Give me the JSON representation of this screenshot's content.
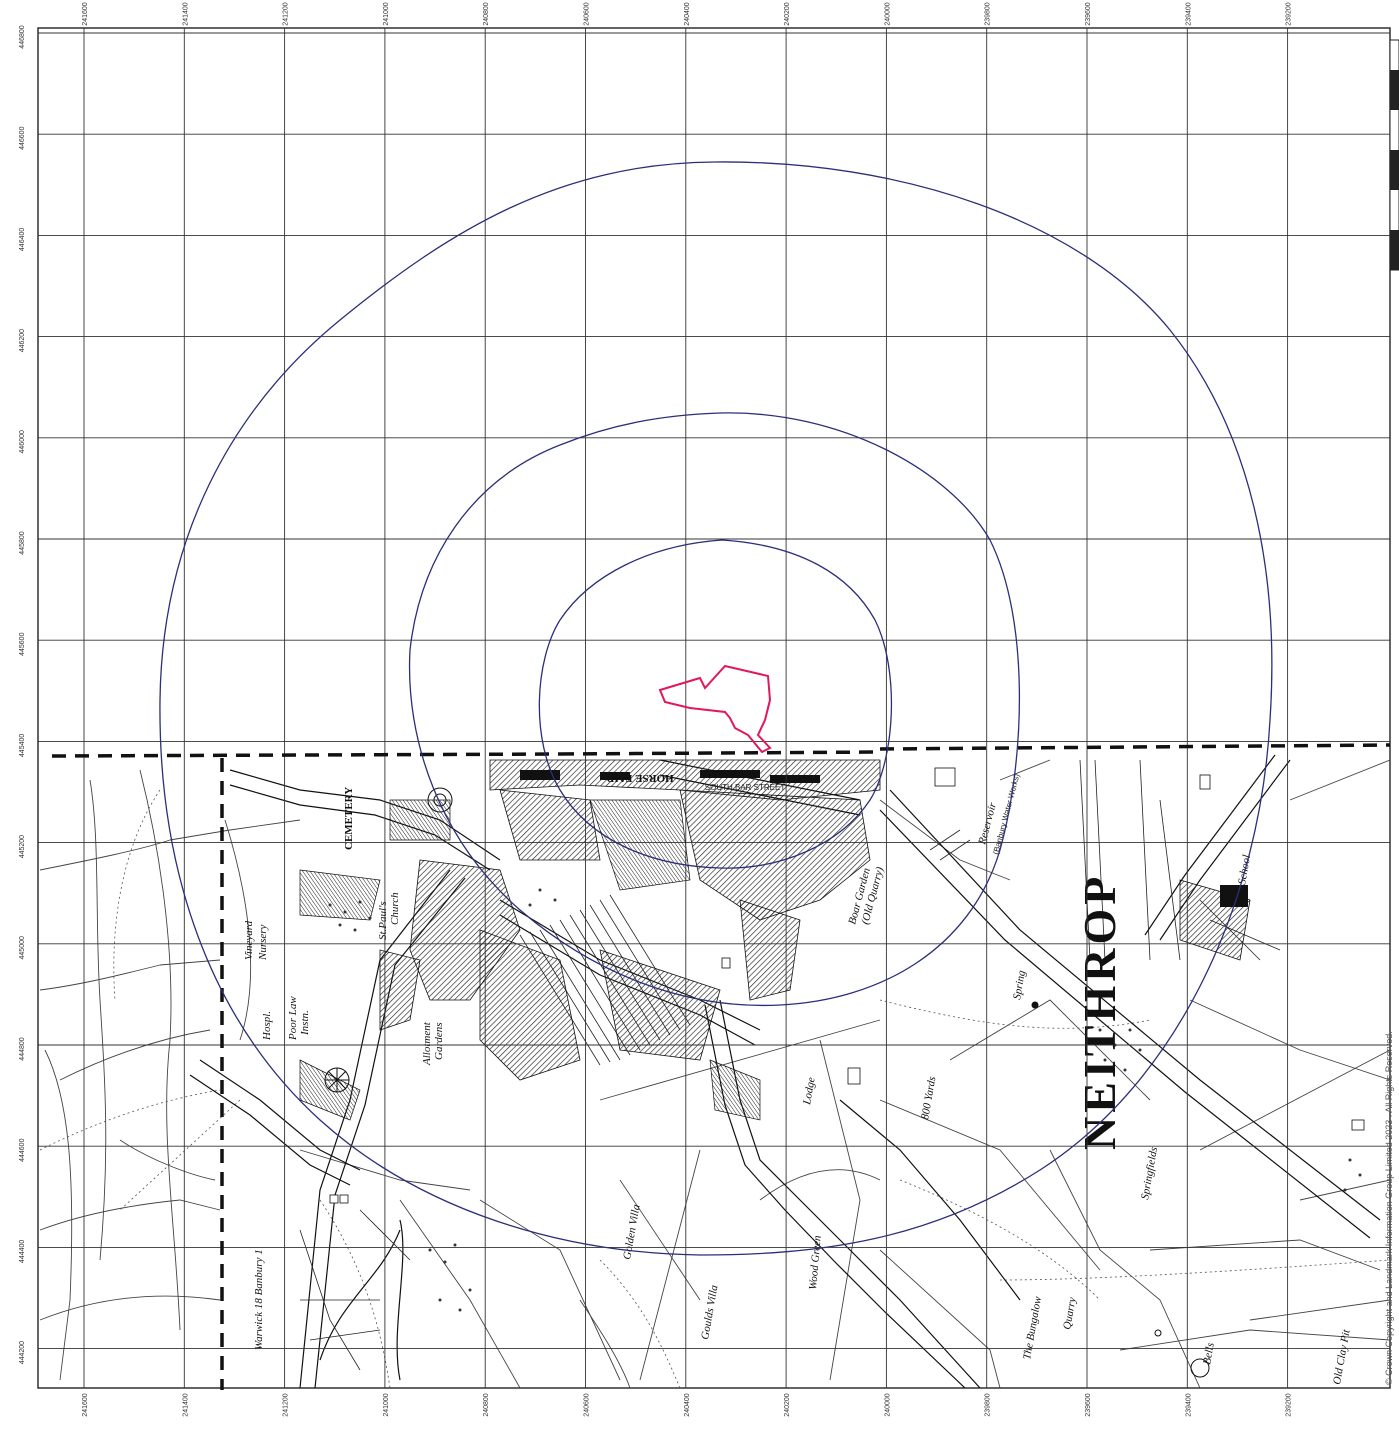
{
  "map": {
    "top_ticks": [
      "241600",
      "241400",
      "241200",
      "241000",
      "240800",
      "240600",
      "240400",
      "240200",
      "240000",
      "239800",
      "239600",
      "239400",
      "239200"
    ],
    "bottom_ticks": [
      "241600",
      "241400",
      "241200",
      "241000",
      "240800",
      "240600",
      "240400",
      "240200",
      "240000",
      "239800",
      "239600",
      "239400",
      "239200"
    ],
    "left_ticks": [
      "446800",
      "446600",
      "446400",
      "446200",
      "446000",
      "445800",
      "445600",
      "445400",
      "445200",
      "445000",
      "444800",
      "444600",
      "444400",
      "444200"
    ],
    "colors": {
      "grid": "#333333",
      "buffer_rings": "#2b2f7a",
      "site_boundary": "#e0195a",
      "base_map": "#1a1a1a"
    },
    "buffer_ring_count": 3,
    "labels": {
      "horse_fair": "HORSE FAIR",
      "south_bar": "SOUTH BAR STREET",
      "vineyard": "Vineyard",
      "nursery": "Nursery",
      "st_pauls": "St.Paul's",
      "church": "Church",
      "hospl": "Hospl.",
      "poor_law": "Poor Law",
      "instn": "Instn.",
      "allotment": "Allotment",
      "gardens": "Gardens",
      "golden_villa": "Golden Villa",
      "goulds_villa": "Goulds Villa",
      "wood_green": "Wood Green",
      "spring": "Spring",
      "boar_garden": "Boar Garden",
      "old_quarry": "(Old Quarry)",
      "reservoir": "Reservoir",
      "banbury_water_works": "(Banbury Water Works)",
      "springfields": "Springfields",
      "school": "School",
      "lodge": "Lodge",
      "quarry": "Quarry",
      "bells": "Bells",
      "the_bungalow": "The Bungalow",
      "old_clay_pit": "Old Clay Pit",
      "yards_800": "800 Yards",
      "cemetery": "CEMETERY",
      "warwick_banbury": "Warwick 18 Banbury 1",
      "big_town_name": "NEITHROP",
      "copyright": "© Crown Copyright and Landmark Information Group Limited 2023 . All Rights Reserved."
    }
  }
}
